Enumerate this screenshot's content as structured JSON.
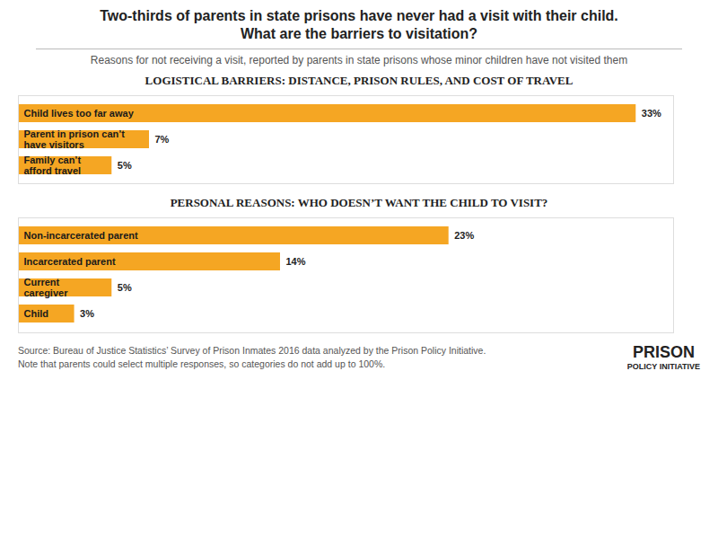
{
  "title": [
    "Two-thirds of parents in state prisons have never had a visit with their child.",
    "What are the barriers to visitation?"
  ],
  "subtitle": "Reasons for not receiving a visit, reported by parents in state prisons whose minor children have not visited them",
  "annotations": [
    "Source: Bureau of Justice Statistics’ Survey of Prison Inmates 2016 data analyzed by the Prison Policy Initiative.",
    "Note that parents could select multiple responses, so categories do not add up to 100%.",
    "PRISON",
    "POLICY INITIATIVE"
  ],
  "chart_data": [
    {
      "type": "bar",
      "orientation": "horizontal",
      "title": "LOGISTICAL BARRIERS: DISTANCE, PRISON RULES, AND COST OF TRAVEL",
      "categories": [
        "Child lives too far away",
        "Parent in prison can’t\nhave visitors",
        "Family can’t\nafford travel"
      ],
      "values": [
        33,
        7,
        5
      ],
      "value_labels": [
        "33%",
        "7%",
        "5%"
      ],
      "color": "#F5A623",
      "xlim": [
        0,
        35
      ],
      "data_labels": true,
      "tick_labels": false
    },
    {
      "type": "bar",
      "orientation": "horizontal",
      "title": "PERSONAL REASONS: WHO DOESN’T WANT THE CHILD TO VISIT?",
      "categories": [
        "Non-incarcerated parent",
        "Incarcerated parent",
        "Current\ncaregiver",
        "Child"
      ],
      "values": [
        23,
        14,
        5,
        3
      ],
      "value_labels": [
        "23%",
        "14%",
        "5%",
        "3%"
      ],
      "color": "#F5A623",
      "xlim": [
        0,
        35
      ],
      "data_labels": true,
      "tick_labels": false
    }
  ]
}
